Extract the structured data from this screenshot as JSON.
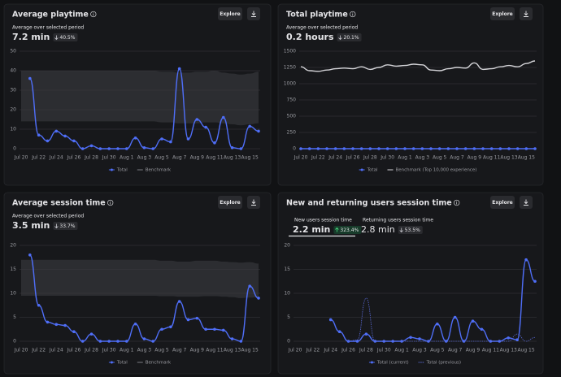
{
  "chart_data": [
    {
      "type": "line",
      "title": "Average playtime",
      "subtitle": "Average over selected period",
      "stat": "7.2 min",
      "change": "40.5%",
      "trend": "down",
      "button": "Explore",
      "categories": [
        "Jul 20",
        null,
        "Jul 22",
        null,
        "Jul 24",
        null,
        "Jul 26",
        null,
        "Jul 28",
        null,
        "Jul 30",
        null,
        "Aug 1",
        null,
        "Aug 3",
        null,
        "Aug 5",
        null,
        "Aug 7",
        null,
        "Aug 9",
        null,
        "Aug 11",
        null,
        "Aug 13",
        null,
        "Aug 15",
        null
      ],
      "ylim": [
        0,
        50
      ],
      "yticks": [
        0,
        10,
        20,
        30,
        40,
        50
      ],
      "grid": true,
      "series": [
        {
          "name": "Total",
          "color": "#4f6ef7",
          "markers": true,
          "values": [
            null,
            36,
            7,
            4,
            9,
            6.5,
            4,
            0,
            1.5,
            0,
            0,
            0,
            0,
            5.5,
            0.5,
            0,
            5,
            3.5,
            41,
            5,
            15,
            11,
            3,
            16,
            0.5,
            0,
            11.5,
            9
          ]
        },
        {
          "name": "Benchmark",
          "color": "#2c2d31",
          "band": true,
          "high": [
            40,
            40,
            40,
            40,
            40,
            40,
            40,
            40,
            40,
            40,
            40,
            40,
            40,
            40,
            40,
            40,
            39.5,
            39.5,
            39,
            39,
            39.5,
            39.5,
            40,
            39,
            38.5,
            38,
            38.5,
            39.5
          ],
          "low": [
            14,
            14,
            14,
            14,
            14,
            14,
            14,
            14,
            14,
            14,
            14,
            14,
            14,
            14,
            14,
            14,
            13.5,
            13.5,
            13,
            13,
            13,
            13.5,
            13.5,
            13,
            12.5,
            12,
            12.5,
            13
          ]
        }
      ]
    },
    {
      "type": "line",
      "title": "Total playtime",
      "subtitle": "Average over selected period",
      "stat": "0.2 hours",
      "change": "20.1%",
      "trend": "down",
      "button": "Explore",
      "categories": [
        "Jul 20",
        null,
        "Jul 22",
        null,
        "Jul 24",
        null,
        "Jul 26",
        null,
        "Jul 28",
        null,
        "Jul 30",
        null,
        "Aug 1",
        null,
        "Aug 3",
        null,
        "Aug 5",
        null,
        "Aug 7",
        null,
        "Aug 9",
        null,
        "Aug 11",
        null,
        "Aug 13",
        null,
        "Aug 15",
        null
      ],
      "ylim": [
        0,
        1500
      ],
      "yticks": [
        0,
        250,
        500,
        750,
        1000,
        1250,
        1500
      ],
      "grid": true,
      "series": [
        {
          "name": "Total",
          "color": "#4f6ef7",
          "markers": true,
          "values": [
            0,
            0,
            0,
            0,
            0,
            0,
            0,
            0,
            0,
            0,
            0,
            0,
            0,
            0,
            0,
            0,
            0,
            0,
            0,
            0,
            0,
            0,
            0,
            0,
            0,
            0,
            0,
            0
          ]
        },
        {
          "name": "Benchmark (Top 10,000 experience)",
          "color": "#d4d4d8",
          "values": [
            1260,
            1200,
            1190,
            1210,
            1230,
            1240,
            1230,
            1260,
            1220,
            1250,
            1290,
            1270,
            1280,
            1300,
            1290,
            1210,
            1200,
            1230,
            1250,
            1240,
            1320,
            1220,
            1230,
            1260,
            1280,
            1260,
            1310,
            1350
          ]
        }
      ]
    },
    {
      "type": "line",
      "title": "Average session time",
      "subtitle": "Average over selected period",
      "stat": "3.5 min",
      "change": "33.7%",
      "trend": "down",
      "button": "Explore",
      "categories": [
        "Jul 20",
        null,
        "Jul 22",
        null,
        "Jul 24",
        null,
        "Jul 26",
        null,
        "Jul 28",
        null,
        "Jul 30",
        null,
        "Aug 1",
        null,
        "Aug 3",
        null,
        "Aug 5",
        null,
        "Aug 7",
        null,
        "Aug 9",
        null,
        "Aug 11",
        null,
        "Aug 13",
        null,
        "Aug 15",
        null
      ],
      "ylim": [
        0,
        20
      ],
      "yticks": [
        0,
        5,
        10,
        15,
        20
      ],
      "grid": true,
      "series": [
        {
          "name": "Total",
          "color": "#4f6ef7",
          "markers": true,
          "values": [
            null,
            18,
            7.5,
            4,
            3.5,
            3.3,
            2,
            0,
            1.5,
            0,
            0,
            0,
            0,
            3.6,
            0.5,
            0,
            2.5,
            3,
            8.3,
            4.5,
            4.8,
            2.5,
            2.5,
            2.3,
            0.5,
            0,
            11.5,
            9
          ]
        },
        {
          "name": "Benchmark",
          "color": "#2c2d31",
          "band": true,
          "high": [
            17,
            17,
            17,
            17,
            17,
            17,
            17,
            17,
            17,
            17,
            17,
            17,
            17,
            17,
            17,
            17,
            16.8,
            16.8,
            16.6,
            16.6,
            16.8,
            16.8,
            16.8,
            16.6,
            16.5,
            16.4,
            16.5,
            16.2
          ],
          "low": [
            9.5,
            9.5,
            9.5,
            9.5,
            9.5,
            9.5,
            9.5,
            9.5,
            9.5,
            9.5,
            9.5,
            9.5,
            9.5,
            9.5,
            9.5,
            9.5,
            9.4,
            9.4,
            9.3,
            9.3,
            9.3,
            9.4,
            9.4,
            9.3,
            9.2,
            9,
            9.1,
            9.2
          ]
        }
      ]
    },
    {
      "type": "line",
      "title": "New and returning users session time",
      "button": "Explore",
      "tabs": [
        {
          "label": "New users session time",
          "stat": "2.2 min",
          "change": "323.4%",
          "trend": "up",
          "selected": true
        },
        {
          "label": "Returning users session time",
          "stat": "2.8 min",
          "change": "53.5%",
          "trend": "down",
          "selected": false
        }
      ],
      "categories": [
        "Jul 20",
        null,
        "Jul 22",
        null,
        "Jul 24",
        null,
        "Jul 26",
        null,
        "Jul 28",
        null,
        "Jul 30",
        null,
        "Aug 1",
        null,
        "Aug 3",
        null,
        "Aug 5",
        null,
        "Aug 7",
        null,
        "Aug 9",
        null,
        "Aug 11",
        null,
        "Aug 13",
        null,
        "Aug 15",
        null
      ],
      "ylim": [
        0,
        20
      ],
      "yticks": [
        0,
        5,
        10,
        15,
        20
      ],
      "grid": true,
      "series": [
        {
          "name": "Total (current)",
          "color": "#4f6ef7",
          "markers": true,
          "values": [
            null,
            null,
            null,
            null,
            4.5,
            2,
            0,
            0,
            1.5,
            0,
            0,
            0,
            0,
            0.8,
            0.5,
            0,
            3.6,
            0,
            5,
            0,
            4.2,
            2.5,
            0,
            0,
            0.7,
            0.3,
            17,
            12.5
          ]
        },
        {
          "name": "Total (previous)",
          "color": "#5b6bd8",
          "dashed": true,
          "values": [
            null,
            null,
            null,
            null,
            null,
            null,
            0,
            0.3,
            9,
            0,
            0,
            0,
            0,
            0,
            0,
            0,
            0,
            0,
            0,
            0,
            0,
            0,
            0,
            0,
            0,
            1.5,
            0,
            0.8
          ]
        }
      ]
    }
  ]
}
